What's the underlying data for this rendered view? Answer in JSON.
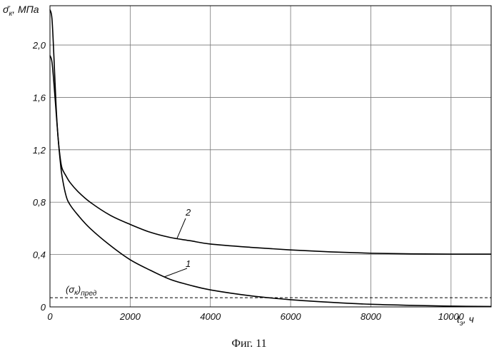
{
  "chart_data": {
    "type": "line",
    "ylabel_main": "σ̄",
    "ylabel_sub": "к",
    "ylabel_unit": ", МПа",
    "xlabel_main": "t",
    "xlabel_sub": "э",
    "xlabel_unit": ", ч",
    "xlim": [
      0,
      11000
    ],
    "ylim": [
      0,
      2.3
    ],
    "x_ticks": [
      0,
      2000,
      4000,
      6000,
      8000,
      10000
    ],
    "x_tick_labels": [
      "0",
      "2000",
      "4000",
      "6000",
      "8000",
      "10000"
    ],
    "y_ticks": [
      0,
      0.4,
      0.8,
      1.2,
      1.6,
      2.0
    ],
    "y_tick_labels": [
      "0",
      "0,4",
      "0,8",
      "1,2",
      "1,6",
      "2,0"
    ],
    "grid": true,
    "series": [
      {
        "name": "1",
        "x": [
          0,
          50,
          100,
          150,
          200,
          250,
          300,
          400,
          500,
          700,
          1000,
          1500,
          2000,
          2500,
          3000,
          3500,
          4000,
          5000,
          6000,
          7000,
          8000,
          9000,
          10000,
          11000
        ],
        "y": [
          1.92,
          1.87,
          1.7,
          1.5,
          1.3,
          1.13,
          1.0,
          0.85,
          0.78,
          0.7,
          0.6,
          0.47,
          0.36,
          0.28,
          0.21,
          0.165,
          0.13,
          0.085,
          0.055,
          0.035,
          0.02,
          0.012,
          0.006,
          0.003
        ]
      },
      {
        "name": "2",
        "x": [
          0,
          50,
          100,
          150,
          200,
          250,
          300,
          400,
          500,
          700,
          1000,
          1500,
          2000,
          2500,
          3000,
          3500,
          4000,
          5000,
          6000,
          7000,
          8000,
          9000,
          10000,
          11000
        ],
        "y": [
          2.27,
          2.2,
          1.9,
          1.55,
          1.3,
          1.15,
          1.06,
          1.0,
          0.95,
          0.88,
          0.8,
          0.7,
          0.63,
          0.57,
          0.53,
          0.505,
          0.48,
          0.455,
          0.435,
          0.42,
          0.41,
          0.405,
          0.403,
          0.403
        ]
      }
    ],
    "curve_labels": [
      "1",
      "2"
    ],
    "reference_line": {
      "y": 0.07,
      "label_main": "(σ",
      "label_sub_k": "к",
      "label_close": ")",
      "label_sub_pred": "пред"
    }
  },
  "caption": "Фиг. 11"
}
